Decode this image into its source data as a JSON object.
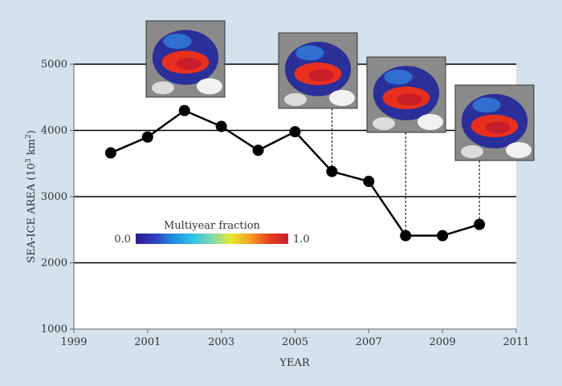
{
  "chart_data": {
    "type": "line",
    "title": "",
    "xlabel": "YEAR",
    "ylabel_main": "SEA-ICE AREA (10",
    "ylabel_sup": "3",
    "ylabel_unit": " km",
    "ylabel_sup2": "2",
    "ylabel_end": ")",
    "xlim": [
      1999,
      2011
    ],
    "ylim": [
      1000,
      5000
    ],
    "xticks": [
      1999,
      2001,
      2003,
      2005,
      2007,
      2009,
      2011
    ],
    "yticks": [
      1000,
      2000,
      3000,
      4000,
      5000
    ],
    "gridlines_y": [
      2000,
      3000,
      4000,
      5000
    ],
    "series": [
      {
        "name": "Sea-ice area",
        "x": [
          2000,
          2001,
          2002,
          2003,
          2004,
          2005,
          2006,
          2007,
          2008,
          2009,
          2010
        ],
        "values": [
          3660,
          3900,
          4300,
          4060,
          3700,
          3980,
          3380,
          3230,
          2410,
          2410,
          2580
        ]
      }
    ],
    "colorbar": {
      "title": "Multiyear fraction",
      "min_label": "0.0",
      "max_label": "1.0",
      "colors": [
        "#2b1b8f",
        "#2f3fc0",
        "#1e8fe0",
        "#2ec4e6",
        "#7fd6b0",
        "#e8e830",
        "#f5a020",
        "#e8401e",
        "#c81e2a"
      ]
    },
    "map_insets": [
      {
        "year": 2002,
        "name": "map-2002"
      },
      {
        "year": 2006,
        "name": "map-2006"
      },
      {
        "year": 2008,
        "name": "map-2008"
      },
      {
        "year": 2010,
        "name": "map-2010"
      }
    ]
  },
  "colors": {
    "background": "#d3e2ec",
    "plot_bg": "#ffffff",
    "line": "#000000",
    "map_gray": "#8a8a8a"
  }
}
